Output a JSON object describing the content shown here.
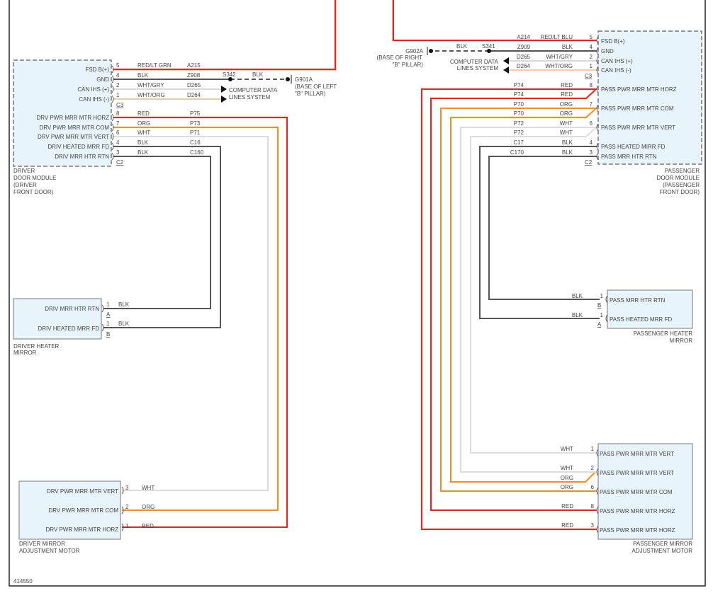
{
  "figure_id": "414550",
  "colors": {
    "red": "#ff1a1a",
    "orange": "#ff8c1a",
    "white": "#dcdcdc",
    "black": "#555555",
    "module_fill": "#e8f4fb"
  },
  "driver_module": {
    "name_lines": [
      "DRIVER",
      "DOOR MODULE",
      "(DRIVER",
      "FRONT DOOR)"
    ],
    "c3_label": "C3",
    "c3": [
      {
        "label": "FSD B(+)",
        "pin": "5",
        "color": "RED/LT GRN",
        "circuit": "A215"
      },
      {
        "label": "GND",
        "pin": "4",
        "color": "BLK",
        "circuit": "Z908"
      },
      {
        "label": "CAN IHS (+)",
        "pin": "2",
        "color": "WHT/GRY",
        "circuit": "D265"
      },
      {
        "label": "CAN IHS (-)",
        "pin": "1",
        "color": "WHT/ORG",
        "circuit": "D264"
      }
    ],
    "c2_label": "C2",
    "c2": [
      {
        "label": "DRV PWR MRR MTR HORZ",
        "pin": "8",
        "color": "RED",
        "circuit": "P75"
      },
      {
        "label": "DRV PWR MRR MTR COM",
        "pin": "7",
        "color": "ORG",
        "circuit": "P73"
      },
      {
        "label": "DRV PWR MRR MTR VERT",
        "pin": "6",
        "color": "WHT",
        "circuit": "P71"
      },
      {
        "label": "DRIV HEATED MRR FD",
        "pin": "4",
        "color": "BLK",
        "circuit": "C16"
      },
      {
        "label": "DRIV MRR HTR RTN",
        "pin": "3",
        "color": "BLK",
        "circuit": "C160"
      }
    ]
  },
  "left_ground": {
    "splice": "S342",
    "wire_color": "BLK",
    "ground": "G901A",
    "location_lines": [
      "(BASE OF LEFT",
      "\"B\" PILLAR)"
    ]
  },
  "computer_data": {
    "lines": [
      "COMPUTER DATA",
      "LINES SYSTEM"
    ]
  },
  "driver_heater_mirror": {
    "name_lines": [
      "DRIVER HEATER",
      "MIRROR"
    ],
    "pins": [
      {
        "label": "DRIV MRR HTR RTN",
        "pin": "1",
        "connector": "A",
        "color": "BLK"
      },
      {
        "label": "DRIV HEATED MRR FD",
        "pin": "1",
        "connector": "B",
        "color": "BLK"
      }
    ]
  },
  "driver_mirror_motor": {
    "name_lines": [
      "DRIVER MIRROR",
      "ADJUSTMENT MOTOR"
    ],
    "pins": [
      {
        "label": "DRV PWR MRR MTR VERT",
        "pin": "3",
        "color": "WHT"
      },
      {
        "label": "DRV PWR MRR MTR COM",
        "pin": "2",
        "color": "ORG"
      },
      {
        "label": "DRV PWR MRR MTR HORZ",
        "pin": "1",
        "color": "RED"
      }
    ]
  },
  "passenger_module": {
    "name_lines": [
      "PASSENGER",
      "DOOR MODULE",
      "(PASSENGER",
      "FRONT DOOR)"
    ],
    "c3_label": "C3",
    "c3": [
      {
        "label": "FSD B(+)",
        "pin": "5",
        "color": "RED/LT BLU",
        "circuit": "A214"
      },
      {
        "label": "GND",
        "pin": "4",
        "color": "BLK",
        "circuit": "Z909"
      },
      {
        "label": "CAN IHS (+)",
        "pin": "2",
        "color": "WHT/GRY",
        "circuit": "D265"
      },
      {
        "label": "CAN IHS (-)",
        "pin": "1",
        "color": "WHT/ORG",
        "circuit": "D264"
      }
    ],
    "c2_label": "C2",
    "c2_labels": [
      "PASS PWR MRR MTR HORZ",
      "PASS PWR MRR MTR COM",
      "PASS PWR MRR MTR VERT",
      "PASS HEATED MIRR FD",
      "PASS MRR HTR RTN"
    ],
    "c2_wires": [
      {
        "pin": "8",
        "color": "RED",
        "circuit": "P74"
      },
      {
        "pin": "",
        "color": "RED",
        "circuit": "P74"
      },
      {
        "pin": "7",
        "color": "ORG",
        "circuit": "P70"
      },
      {
        "pin": "",
        "color": "ORG",
        "circuit": "P70"
      },
      {
        "pin": "6",
        "color": "WHT",
        "circuit": "P72"
      },
      {
        "pin": "",
        "color": "WHT",
        "circuit": "P72"
      },
      {
        "pin": "4",
        "color": "BLK",
        "circuit": "C17"
      },
      {
        "pin": "3",
        "color": "BLK",
        "circuit": "C170"
      }
    ]
  },
  "right_ground": {
    "splice": "S341",
    "wire_color": "BLK",
    "ground": "G902A",
    "location_lines": [
      "(BASE OF RIGHT",
      "\"B\" PILLAR)"
    ]
  },
  "passenger_heater_mirror": {
    "name_lines": [
      "PASSENGER HEATER",
      "MIRROR"
    ],
    "pins": [
      {
        "label": "PASS MRR HTR RTN",
        "pin": "1",
        "connector": "B",
        "color": "BLK"
      },
      {
        "label": "PASS HEATED MRR FD",
        "pin": "1",
        "connector": "A",
        "color": "BLK"
      }
    ]
  },
  "passenger_mirror_motor": {
    "name_lines": [
      "PASSENGER MIRROR",
      "ADJUSTMENT MOTOR"
    ],
    "pins": [
      {
        "label": "PASS PWR MRR MTR VERT",
        "pin": "1",
        "color": "WHT"
      },
      {
        "label": "PASS PWR MRR MTR VERT",
        "pin": "2",
        "color": "WHT"
      },
      {
        "label": "PASS PWR MRR MTR COM",
        "pin": "6",
        "color": "ORG"
      },
      {
        "label": "PASS PWR MRR MTR HORZ",
        "pin": "8",
        "color": "RED"
      },
      {
        "label": "PASS PWR MRR MTR HORZ",
        "pin": "3",
        "color": "RED"
      }
    ],
    "extra_wire_color": "ORG"
  }
}
